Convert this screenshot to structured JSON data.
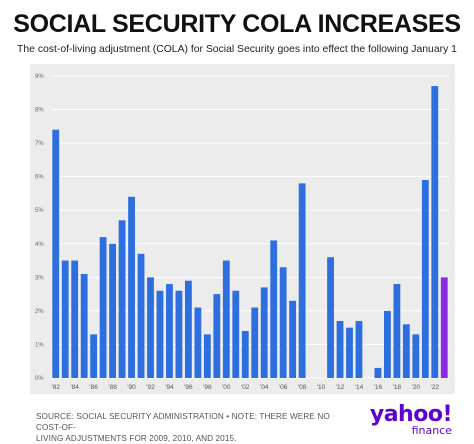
{
  "chart_data": {
    "type": "bar",
    "title": "SOCIAL SECURITY COLA INCREASES",
    "subtitle": "The cost-of-living adjustment (COLA) for Social Security goes into effect the following January 1",
    "categories": [
      1982,
      1983,
      1984,
      1985,
      1986,
      1987,
      1988,
      1989,
      1990,
      1991,
      1992,
      1993,
      1994,
      1995,
      1996,
      1997,
      1998,
      1999,
      2000,
      2001,
      2002,
      2003,
      2004,
      2005,
      2006,
      2007,
      2008,
      2009,
      2010,
      2011,
      2012,
      2013,
      2014,
      2015,
      2016,
      2017,
      2018,
      2019,
      2020,
      2021,
      2022,
      2023
    ],
    "values": [
      7.4,
      3.5,
      3.5,
      3.1,
      1.3,
      4.2,
      4.0,
      4.7,
      5.4,
      3.7,
      3.0,
      2.6,
      2.8,
      2.6,
      2.9,
      2.1,
      1.3,
      2.5,
      3.5,
      2.6,
      1.4,
      2.1,
      2.7,
      4.1,
      3.3,
      2.3,
      5.8,
      0,
      0,
      3.6,
      1.7,
      1.5,
      1.7,
      0,
      0.3,
      2.0,
      2.8,
      1.6,
      1.3,
      5.9,
      8.7,
      3.0
    ],
    "highlight_index": 41,
    "ylim": [
      0,
      9
    ],
    "y_ticks": [
      "0%",
      "1%",
      "2%",
      "3%",
      "4%",
      "5%",
      "6%",
      "7%",
      "8%",
      "9%"
    ],
    "x_tick_labels": [
      {
        "index": 0,
        "label": "'82"
      },
      {
        "index": 2,
        "label": "'84"
      },
      {
        "index": 4,
        "label": "'86"
      },
      {
        "index": 6,
        "label": "'88"
      },
      {
        "index": 8,
        "label": "'90"
      },
      {
        "index": 10,
        "label": "'92"
      },
      {
        "index": 12,
        "label": "'94"
      },
      {
        "index": 14,
        "label": "'96"
      },
      {
        "index": 16,
        "label": "'98"
      },
      {
        "index": 18,
        "label": "'00"
      },
      {
        "index": 20,
        "label": "'02"
      },
      {
        "index": 22,
        "label": "'04"
      },
      {
        "index": 24,
        "label": "'06"
      },
      {
        "index": 26,
        "label": "'08"
      },
      {
        "index": 28,
        "label": "'10"
      },
      {
        "index": 30,
        "label": "'12"
      },
      {
        "index": 32,
        "label": "'14"
      },
      {
        "index": 34,
        "label": "'16"
      },
      {
        "index": 36,
        "label": "'18"
      },
      {
        "index": 38,
        "label": "'20"
      },
      {
        "index": 40,
        "label": "'22"
      }
    ],
    "grid": true,
    "bar_color": "#2e6fe0",
    "highlight_color": "#8a2be2",
    "grid_color": "#ffffff",
    "panel_color": "#ececec"
  },
  "footer": {
    "source_line1": "SOURCE: SOCIAL SECURITY ADMINISTRATION • NOTE: THERE WERE NO COST-OF-",
    "source_line2": "LIVING ADJUSTMENTS FOR 2009, 2010, AND 2015."
  },
  "logo": {
    "brand": "yahoo!",
    "sub": "finance",
    "color": "#5f01d1"
  }
}
